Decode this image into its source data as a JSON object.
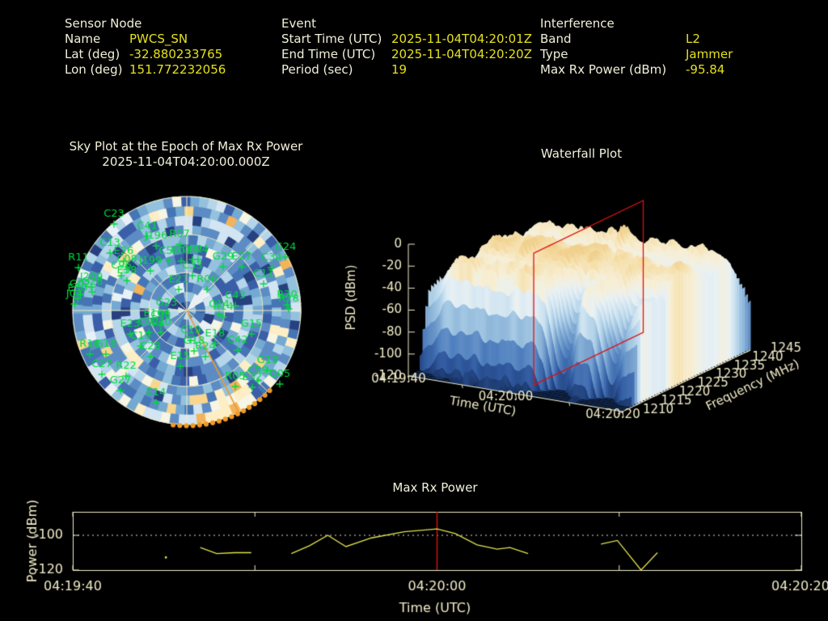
{
  "header": {
    "sections": [
      {
        "title": "Sensor Node",
        "rows": [
          {
            "label": "Name",
            "value": "PWCS_SN"
          },
          {
            "label": "Lat (deg)",
            "value": "-32.880233765"
          },
          {
            "label": "Lon (deg)",
            "value": "151.772232056"
          }
        ]
      },
      {
        "title": "Event",
        "rows": [
          {
            "label": "Start Time (UTC)",
            "value": "2025-11-04T04:20:01Z"
          },
          {
            "label": "End Time (UTC)",
            "value": "2025-11-04T04:20:20Z"
          },
          {
            "label": "Period (sec)",
            "value": "19"
          }
        ]
      },
      {
        "title": "Interference",
        "rows": [
          {
            "label": "Band",
            "value": "L2"
          },
          {
            "label": "Type",
            "value": "Jammer"
          },
          {
            "label": "Max Rx Power (dBm)",
            "value": "-95.84"
          }
        ]
      }
    ]
  },
  "colors": {
    "background": "#000000",
    "label": "#f2f0da",
    "value": "#e4e020",
    "axis": "#f1ecc8",
    "green": "#00d93c",
    "orange": "#f09a28",
    "red": "#dd1111"
  },
  "chart_data": [
    {
      "type": "polar-heatmap",
      "title": "Sky Plot at the Epoch of Max Rx Power",
      "subtitle": "2025-11-04T04:20:00.000Z",
      "spokes_every_deg": 45,
      "elevation_rings": 3,
      "palette": [
        "#27407f",
        "#3a5fa8",
        "#4575b4",
        "#5d8cc4",
        "#74a9d1",
        "#94c2de",
        "#b5d5ea",
        "#d3e5f2",
        "#e9f1f8",
        "#f7f5e3",
        "#fdeec5",
        "#f8d68e",
        "#f2b35a"
      ],
      "palette_weights": [
        0.05,
        0.1,
        0.13,
        0.13,
        0.13,
        0.12,
        0.1,
        0.08,
        0.06,
        0.04,
        0.03,
        0.02,
        0.01
      ],
      "jammer": {
        "bearing_deg": 153,
        "track_deg_start": 134,
        "track_deg_end": 187,
        "color": "#f09a28"
      },
      "satellites": [
        [
          "C23",
          81,
          34
        ],
        [
          "C41",
          122,
          49
        ],
        [
          "J196",
          133,
          61
        ],
        [
          "R07",
          162,
          59
        ],
        [
          "C13",
          76,
          70
        ],
        [
          "E26",
          93,
          80
        ],
        [
          "R11",
          37,
          88
        ],
        [
          "C08",
          97,
          90
        ],
        [
          "J199",
          126,
          92
        ],
        [
          "C50",
          149,
          80
        ],
        [
          "C01",
          164,
          80
        ],
        [
          "C02",
          178,
          78
        ],
        [
          "C04",
          185,
          78
        ],
        [
          "G29",
          216,
          87
        ],
        [
          "E27",
          239,
          87
        ],
        [
          "C34",
          276,
          88
        ],
        [
          "G24",
          293,
          75
        ],
        [
          "C96",
          90,
          98
        ],
        [
          "E38",
          97,
          104
        ],
        [
          "J209",
          53,
          112
        ],
        [
          "G02",
          39,
          121
        ],
        [
          "G28",
          54,
          118
        ],
        [
          "E30",
          36,
          126
        ],
        [
          "J04",
          32,
          133
        ],
        [
          "C33",
          178,
          98
        ],
        [
          "E21",
          161,
          115
        ],
        [
          "R06",
          196,
          115
        ],
        [
          "C43",
          231,
          135
        ],
        [
          "C14",
          211,
          146
        ],
        [
          "R14",
          216,
          149
        ],
        [
          "C11",
          266,
          108
        ],
        [
          "R20",
          295,
          134
        ],
        [
          "R28",
          297,
          139
        ],
        [
          "G23",
          146,
          144
        ],
        [
          "E16",
          130,
          157
        ],
        [
          "C05",
          139,
          159
        ],
        [
          "E23",
          101,
          170
        ],
        [
          "C07",
          124,
          168
        ],
        [
          "C40",
          139,
          168
        ],
        [
          "C10",
          114,
          185
        ],
        [
          "C19",
          176,
          178
        ],
        [
          "E18",
          206,
          182
        ],
        [
          "R24",
          194,
          198
        ],
        [
          "G18",
          180,
          191
        ],
        [
          "C42",
          234,
          190
        ],
        [
          "G15",
          251,
          170
        ],
        [
          "R10",
          51,
          195
        ],
        [
          "G16",
          71,
          195
        ],
        [
          "C28",
          126,
          198
        ],
        [
          "E15",
          163,
          210
        ],
        [
          "C27",
          66,
          220
        ],
        [
          "R22",
          96,
          222
        ],
        [
          "G27",
          89,
          240
        ],
        [
          "E14",
          133,
          255
        ],
        [
          "G13",
          271,
          215
        ],
        [
          "R05",
          231,
          235
        ],
        [
          "E32",
          252,
          236
        ],
        [
          "C59",
          259,
          228
        ],
        [
          "G05",
          286,
          232
        ]
      ]
    },
    {
      "type": "surface",
      "title": "Waterfall Plot",
      "xlabel": "Time (UTC)",
      "x_ticks": [
        "04:19:40",
        "04:20:00",
        "04:20:20"
      ],
      "ylabel": "Frequency (MHz)",
      "y_ticks": [
        1210,
        1215,
        1220,
        1225,
        1230,
        1235,
        1240,
        1245
      ],
      "y_range": [
        1210,
        1245
      ],
      "zlabel": "PSD (dBm)",
      "z_ticks": [
        0,
        -20,
        -40,
        -60,
        -80,
        -100,
        -120
      ],
      "z_range": [
        -120,
        0
      ],
      "slice_marker": {
        "color": "#dd1111",
        "time": "04:20:00",
        "freq_range_mhz": [
          1215,
          1245
        ],
        "psd_range": [
          -120,
          0
        ]
      },
      "surface_palette": [
        [
          0,
          "#16305e"
        ],
        [
          0.18,
          "#2f579d"
        ],
        [
          0.33,
          "#4f7fbe"
        ],
        [
          0.48,
          "#7fa8d2"
        ],
        [
          0.6,
          "#a8cce6"
        ],
        [
          0.7,
          "#cfe4f1"
        ],
        [
          0.78,
          "#e9f1f5"
        ],
        [
          0.86,
          "#f7efd6"
        ],
        [
          0.93,
          "#f6e0ac"
        ],
        [
          1,
          "#eeca82"
        ]
      ],
      "description": "Broadband elevated PSD (~-20 dBm) across ~1215-1240 MHz during the event; red plane marks the epoch 04:20:00"
    },
    {
      "type": "line",
      "title": "Max Rx Power",
      "xlabel": "Time (UTC)",
      "ylabel": "Power (dBm)",
      "x_ticks": [
        "04:19:40",
        "04:20:00",
        "04:20:20"
      ],
      "x_range_sec": [
        0,
        40
      ],
      "y_ticks": [
        -100,
        -120
      ],
      "y_range": [
        -120,
        -86.5
      ],
      "threshold_line_dbm": -100,
      "event_marker_time_sec": 20,
      "series": {
        "name": "Max Rx Power",
        "color": "#e3e34f",
        "points": [
          [
            5.1,
            -112.6
          ],
          null,
          [
            7.0,
            -107.0
          ],
          [
            7.9,
            -110.5
          ],
          [
            8.9,
            -110.0
          ],
          [
            9.8,
            -110.0
          ],
          null,
          [
            12.0,
            -110.5
          ],
          [
            13.0,
            -106.0
          ],
          [
            14.0,
            -100.0
          ],
          [
            15.0,
            -106.5
          ],
          [
            16.4,
            -101.5
          ],
          [
            18.2,
            -98.0
          ],
          [
            20.0,
            -96.3
          ],
          [
            21.0,
            -99.0
          ],
          [
            22.2,
            -105.5
          ],
          [
            23.3,
            -108.0
          ],
          [
            24.0,
            -107.0
          ],
          [
            25.0,
            -110.5
          ],
          null,
          [
            29.0,
            -105.0
          ],
          [
            29.9,
            -103.0
          ],
          [
            31.2,
            -120.5
          ],
          [
            32.1,
            -110.0
          ]
        ]
      }
    }
  ]
}
